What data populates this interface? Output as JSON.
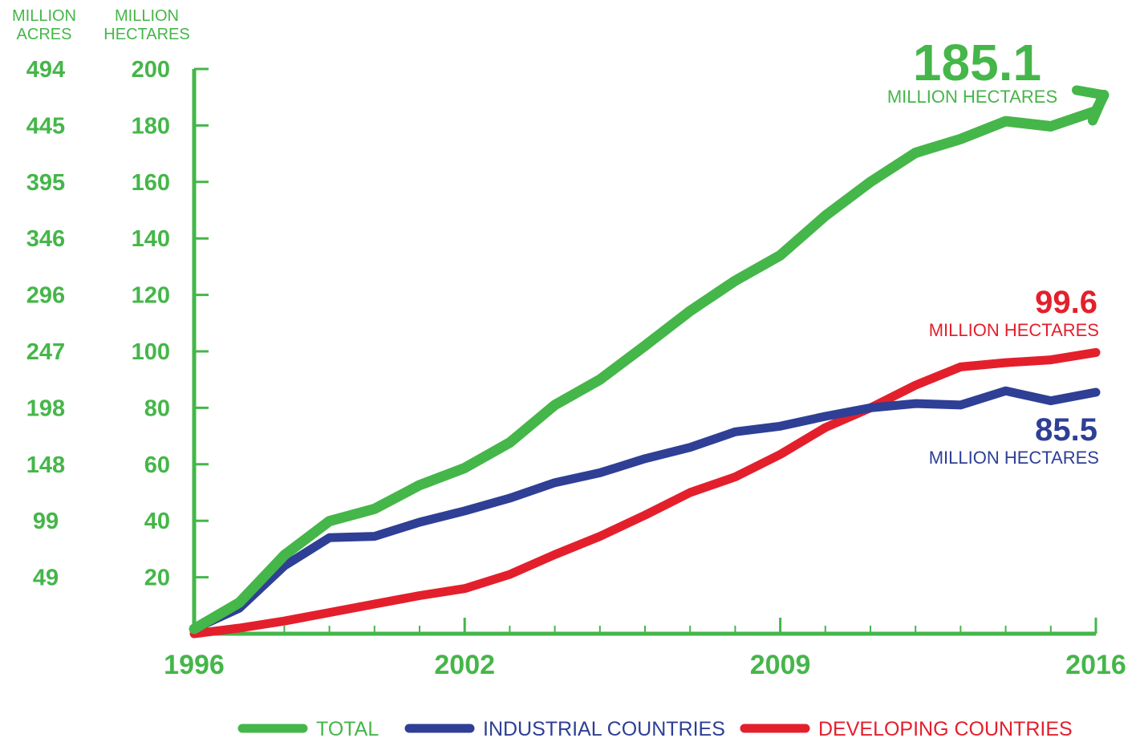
{
  "chart_data": {
    "type": "line",
    "x": [
      1996,
      1997,
      1998,
      1999,
      2000,
      2001,
      2002,
      2003,
      2004,
      2005,
      2006,
      2007,
      2008,
      2009,
      2010,
      2011,
      2012,
      2013,
      2014,
      2015,
      2016
    ],
    "series": [
      {
        "name": "TOTAL",
        "color": "#45b649",
        "values": [
          1.7,
          11,
          27.8,
          39.9,
          44.2,
          52.6,
          58.7,
          67.7,
          81,
          90,
          102,
          114.3,
          125,
          134,
          148,
          160,
          170.3,
          175.2,
          181.5,
          179.7,
          185.1
        ]
      },
      {
        "name": "INDUSTRIAL COUNTRIES",
        "color": "#2e3f95",
        "values": [
          1.7,
          9,
          24,
          34,
          34.5,
          39.5,
          43.5,
          48,
          53.5,
          57,
          62,
          66,
          71.5,
          73.5,
          77,
          80,
          81.5,
          81,
          86,
          82.5,
          85.5
        ]
      },
      {
        "name": "DEVELOPING COUNTRIES",
        "color": "#e41f2c",
        "values": [
          0,
          2,
          4.5,
          7.5,
          10.5,
          13.5,
          16,
          21,
          28,
          34.5,
          42,
          50,
          55.5,
          63.5,
          73,
          80,
          88,
          94.5,
          96,
          97,
          99.6
        ]
      }
    ],
    "left_axis": {
      "label_line1": "MILLION",
      "label_line2": "ACRES",
      "ticks": [
        "494",
        "445",
        "395",
        "346",
        "296",
        "247",
        "198",
        "148",
        "99",
        "49"
      ]
    },
    "right_axis": {
      "label_line1": "MILLION",
      "label_line2": "HECTARES",
      "ticks": [
        "200",
        "180",
        "160",
        "140",
        "120",
        "100",
        "80",
        "60",
        "40",
        "20"
      ]
    },
    "ylim": [
      0,
      200
    ],
    "xlim": [
      1996,
      2016
    ],
    "x_tick_labels": [
      "1996",
      "2002",
      "2009",
      "2016"
    ],
    "end_labels": {
      "total": {
        "value": "185.1",
        "unit": "MILLION HECTARES"
      },
      "developing": {
        "value": "99.6",
        "unit": "MILLION HECTARES"
      },
      "industrial": {
        "value": "85.5",
        "unit": "MILLION HECTARES"
      }
    },
    "legend": {
      "position": "bottom",
      "items": [
        "TOTAL",
        "INDUSTRIAL COUNTRIES",
        "DEVELOPING COUNTRIES"
      ]
    }
  }
}
